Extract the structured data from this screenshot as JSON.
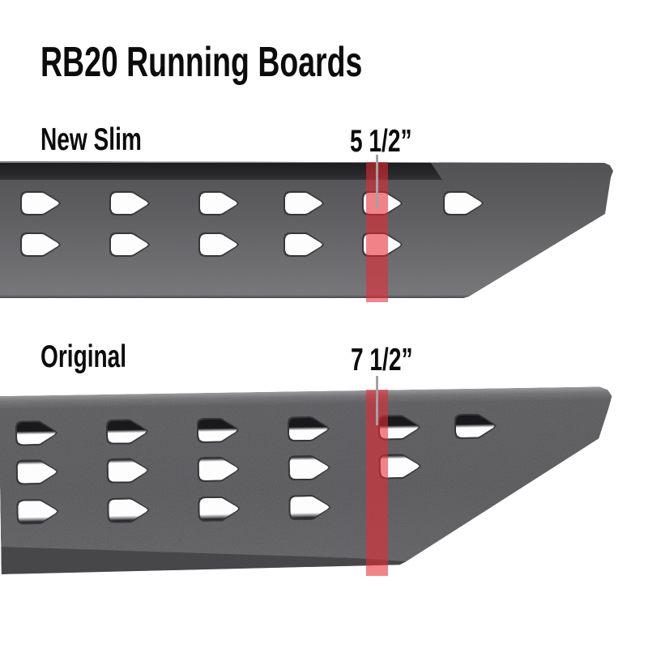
{
  "title": "RB20 Running Boards",
  "boards": [
    {
      "label": "New Slim",
      "width_label": "5 1/2”"
    },
    {
      "label": "Original",
      "width_label": "7 1/2”"
    }
  ],
  "colors": {
    "highlight_red": "#e82a34",
    "board_gray": "#565659",
    "trim_black": "#1d1d1f",
    "measure_line_gray": "#a2a2a4",
    "text_black": "#0c0c0d",
    "background": "#ffffff"
  }
}
